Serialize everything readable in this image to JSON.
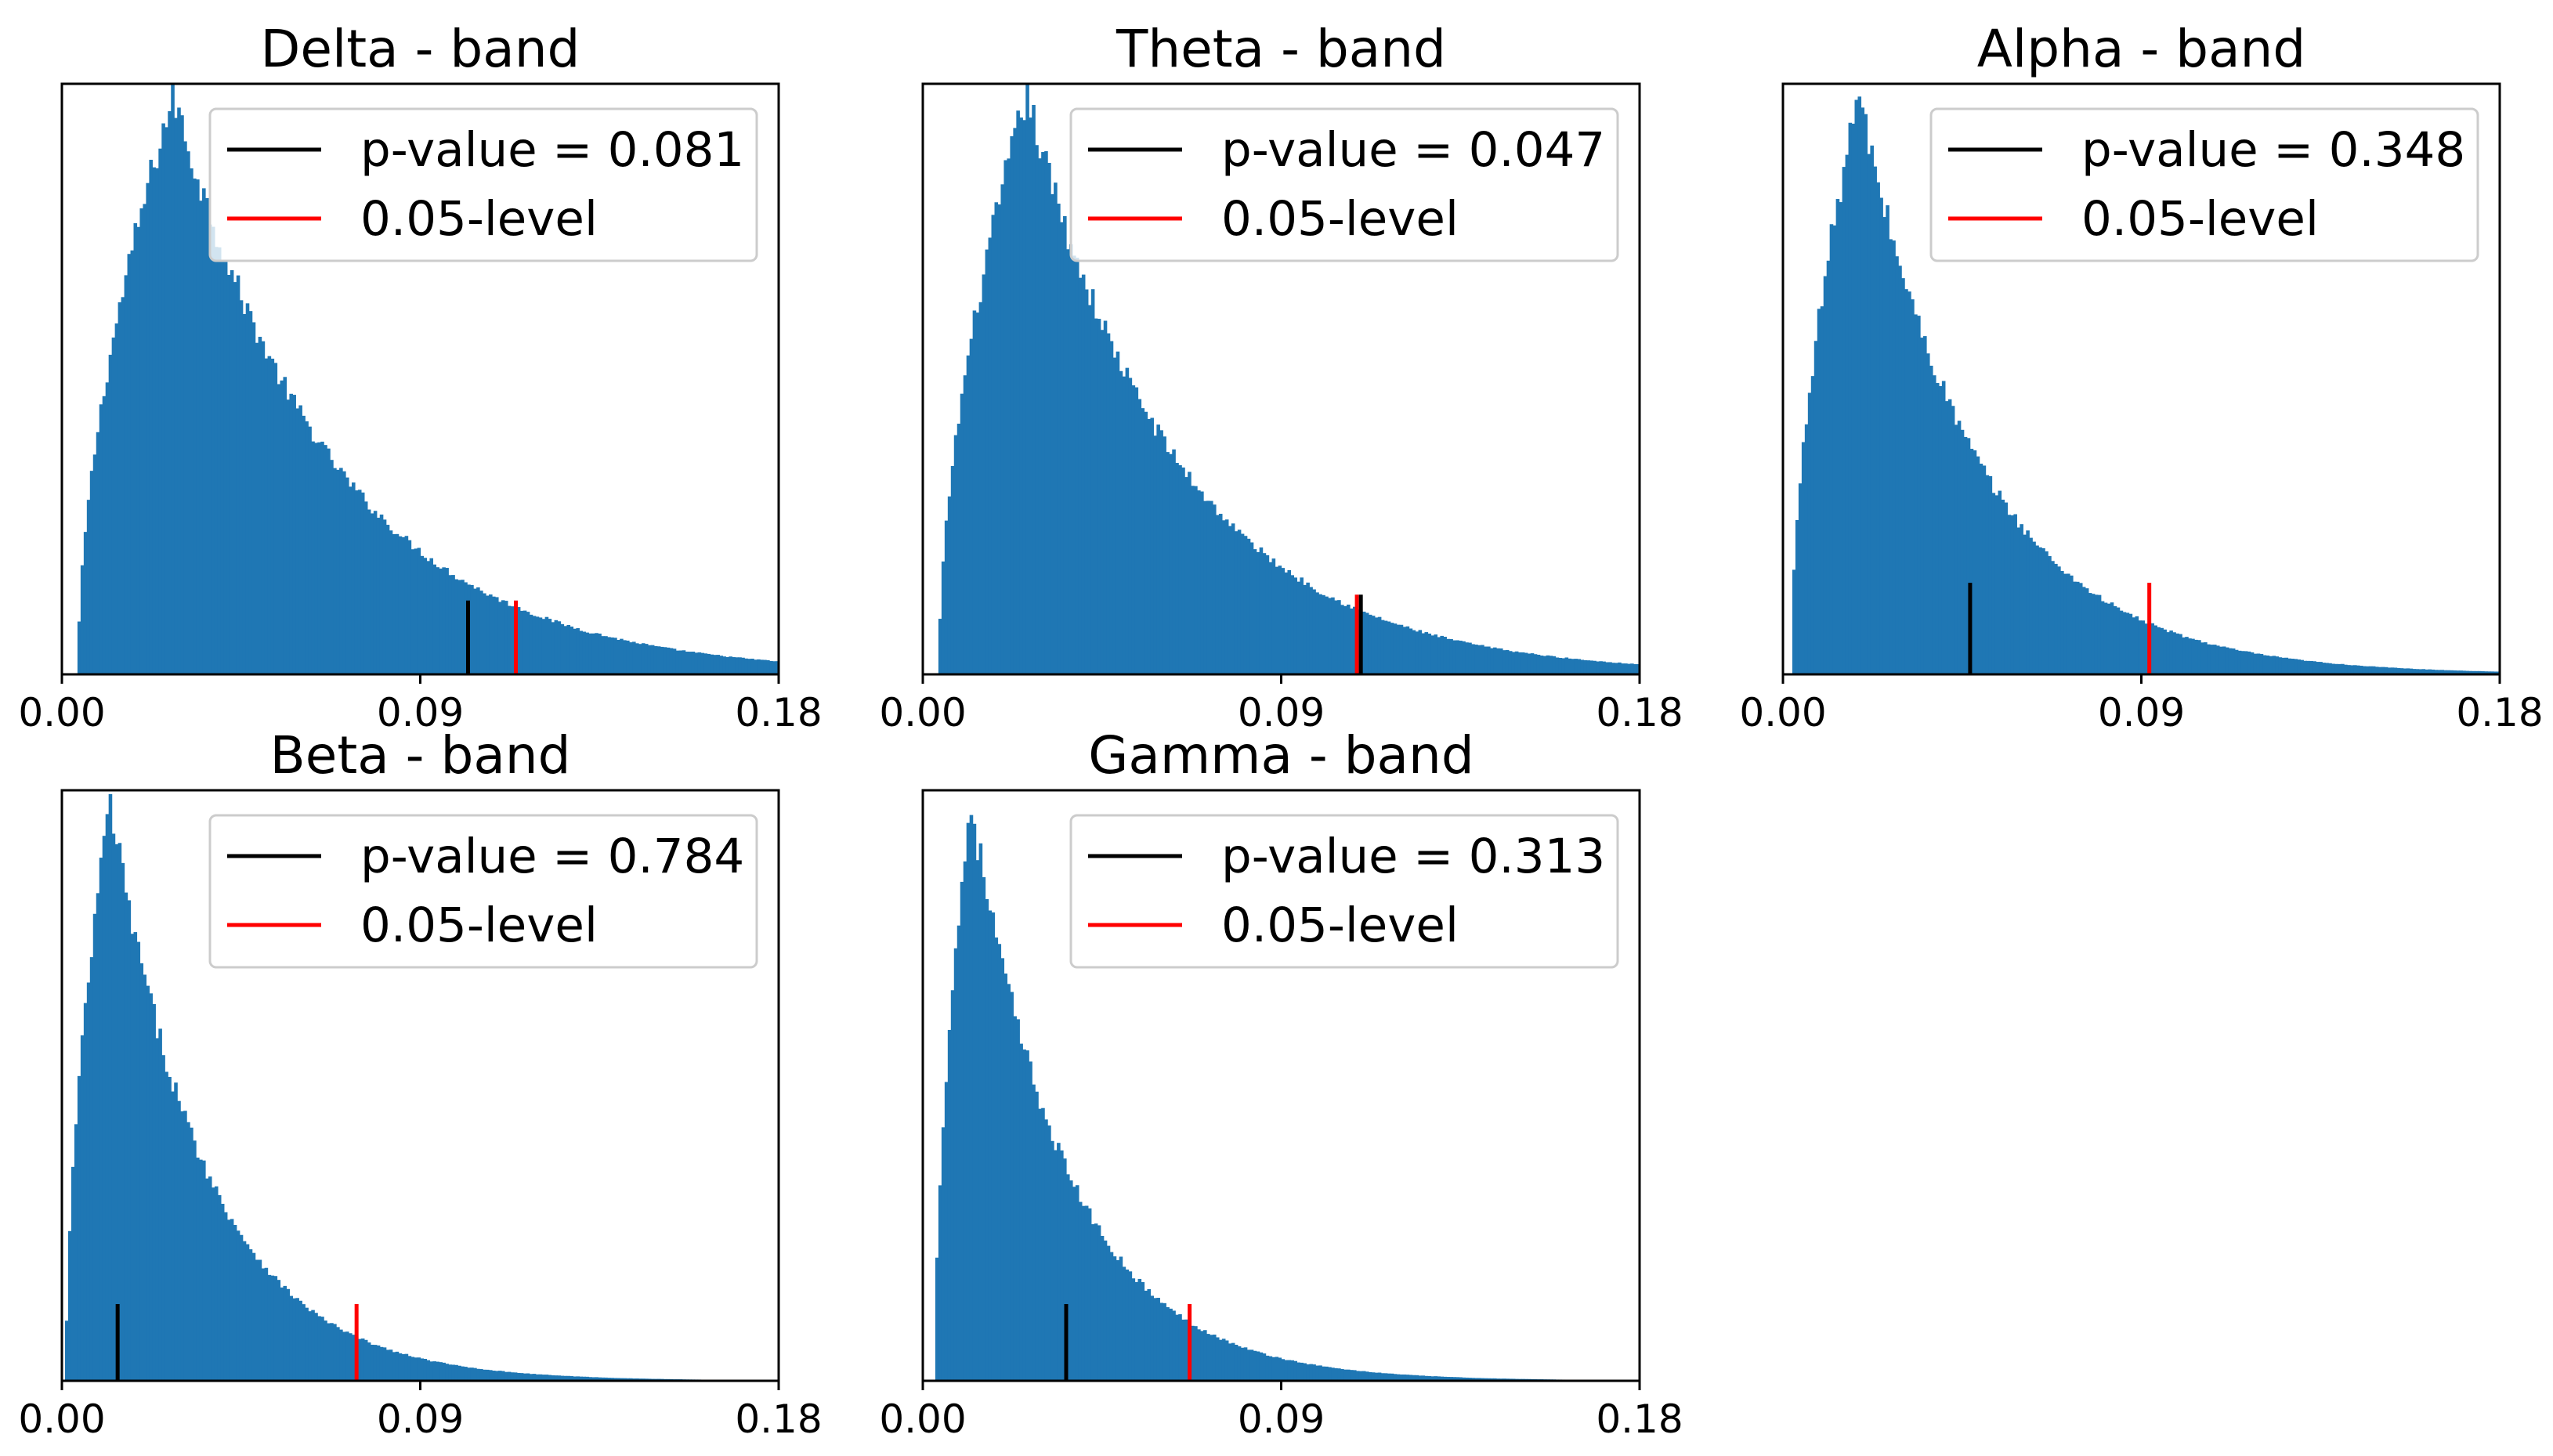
{
  "colors": {
    "hist": "#1f77b4",
    "pvalue_line": "#000000",
    "level_line": "#ff0000",
    "legend_border": "#cccccc",
    "axes": "#000000"
  },
  "chart_data": [
    {
      "type": "histogram",
      "title": "Delta - band",
      "xlim": [
        0.0,
        0.18
      ],
      "xticks": [
        "0.00",
        "0.09",
        "0.18"
      ],
      "yticks_visible": false,
      "distribution": {
        "start": 0.004,
        "mode": 0.028,
        "peak_rel_height": 0.98,
        "tail_decay": 0.04
      },
      "p_value_stat": 0.102,
      "p_value_line_height": 0.125,
      "level_stat": 0.114,
      "level_line_height": 0.125,
      "legend": [
        {
          "label": "p-value = 0.081",
          "color": "#000000"
        },
        {
          "label": "0.05-level",
          "color": "#ff0000"
        }
      ],
      "legend_loc": "upper right"
    },
    {
      "type": "histogram",
      "title": "Theta - band",
      "xlim": [
        0.0,
        0.18
      ],
      "xticks": [
        "0.00",
        "0.09",
        "0.18"
      ],
      "yticks_visible": false,
      "distribution": {
        "start": 0.004,
        "mode": 0.026,
        "peak_rel_height": 0.98,
        "tail_decay": 0.038
      },
      "p_value_stat": 0.11,
      "p_value_line_height": 0.135,
      "level_stat": 0.109,
      "level_line_height": 0.135,
      "legend": [
        {
          "label": "p-value = 0.047",
          "color": "#000000"
        },
        {
          "label": "0.05-level",
          "color": "#ff0000"
        }
      ],
      "legend_loc": "upper right"
    },
    {
      "type": "histogram",
      "title": "Alpha - band",
      "xlim": [
        0.0,
        0.18
      ],
      "xticks": [
        "0.00",
        "0.09",
        "0.18"
      ],
      "yticks_visible": false,
      "distribution": {
        "start": 0.002,
        "mode": 0.019,
        "peak_rel_height": 0.98,
        "tail_decay": 0.03
      },
      "p_value_stat": 0.047,
      "p_value_line_height": 0.155,
      "level_stat": 0.092,
      "level_line_height": 0.155,
      "legend": [
        {
          "label": "p-value = 0.348",
          "color": "#000000"
        },
        {
          "label": "0.05-level",
          "color": "#ff0000"
        }
      ],
      "legend_loc": "upper right"
    },
    {
      "type": "histogram",
      "title": "Beta - band",
      "xlim": [
        0.0,
        0.18
      ],
      "xticks": [
        "0.00",
        "0.09",
        "0.18"
      ],
      "yticks_visible": false,
      "distribution": {
        "start": 0.001,
        "mode": 0.012,
        "peak_rel_height": 0.98,
        "tail_decay": 0.024
      },
      "p_value_stat": 0.014,
      "p_value_line_height": 0.13,
      "level_stat": 0.074,
      "level_line_height": 0.13,
      "legend": [
        {
          "label": "p-value = 0.784",
          "color": "#000000"
        },
        {
          "label": "0.05-level",
          "color": "#ff0000"
        }
      ],
      "legend_loc": "upper right"
    },
    {
      "type": "histogram",
      "title": "Gamma - band",
      "xlim": [
        0.0,
        0.18
      ],
      "xticks": [
        "0.00",
        "0.09",
        "0.18"
      ],
      "yticks_visible": false,
      "distribution": {
        "start": 0.003,
        "mode": 0.012,
        "peak_rel_height": 0.98,
        "tail_decay": 0.024
      },
      "p_value_stat": 0.036,
      "p_value_line_height": 0.13,
      "level_stat": 0.067,
      "level_line_height": 0.13,
      "legend": [
        {
          "label": "p-value = 0.313",
          "color": "#000000"
        },
        {
          "label": "0.05-level",
          "color": "#ff0000"
        }
      ],
      "legend_loc": "upper right"
    }
  ]
}
